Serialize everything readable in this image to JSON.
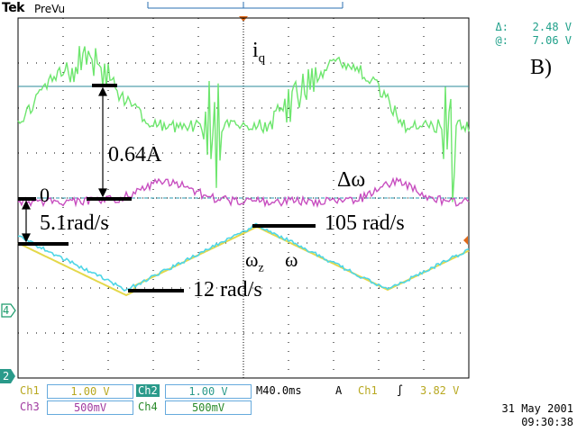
{
  "header": {
    "brand": "Tek",
    "mode": "PreVu",
    "delta_label": "Δ:",
    "delta_value": "2.48 V",
    "at_label": "@:",
    "at_value": "7.06 V"
  },
  "panel_label": "B)",
  "annotations": {
    "iq_main": "i",
    "iq_sub": "q",
    "amp": "0.64A",
    "zero": "0",
    "rad_51": "5.1rad/s",
    "delta_omega": "Δω",
    "rad_105": "105 rad/s",
    "omega_z_main": "ω",
    "omega_z_sub": "z",
    "omega": "ω",
    "rad_12": "12 rad/s"
  },
  "markers": {
    "ch4": "4",
    "ch2": "2"
  },
  "status_bar": {
    "ch1": {
      "label": "Ch1",
      "value": "1.00 V"
    },
    "ch2": {
      "label": "Ch2",
      "value": "1.00 V"
    },
    "ch3": {
      "label": "Ch3",
      "value": "500mV"
    },
    "ch4": {
      "label": "Ch4",
      "value": "500mV"
    },
    "timebase": "M40.0ms",
    "coupling": "A",
    "trigger_ch": "Ch1",
    "trigger_slope": "∫",
    "trigger_level": "3.82 V"
  },
  "timestamp": {
    "date": "31 May 2001",
    "time": "09:30:38"
  },
  "colors": {
    "ch1": "#e4d84a",
    "ch2": "#4fd6e6",
    "ch3": "#c84fc0",
    "ch4": "#6ee66e",
    "grid": "#000000",
    "readout": "#1fa08a",
    "marker": "#e06a1a",
    "ch2_marker_bg": "#2a9a8a"
  }
}
